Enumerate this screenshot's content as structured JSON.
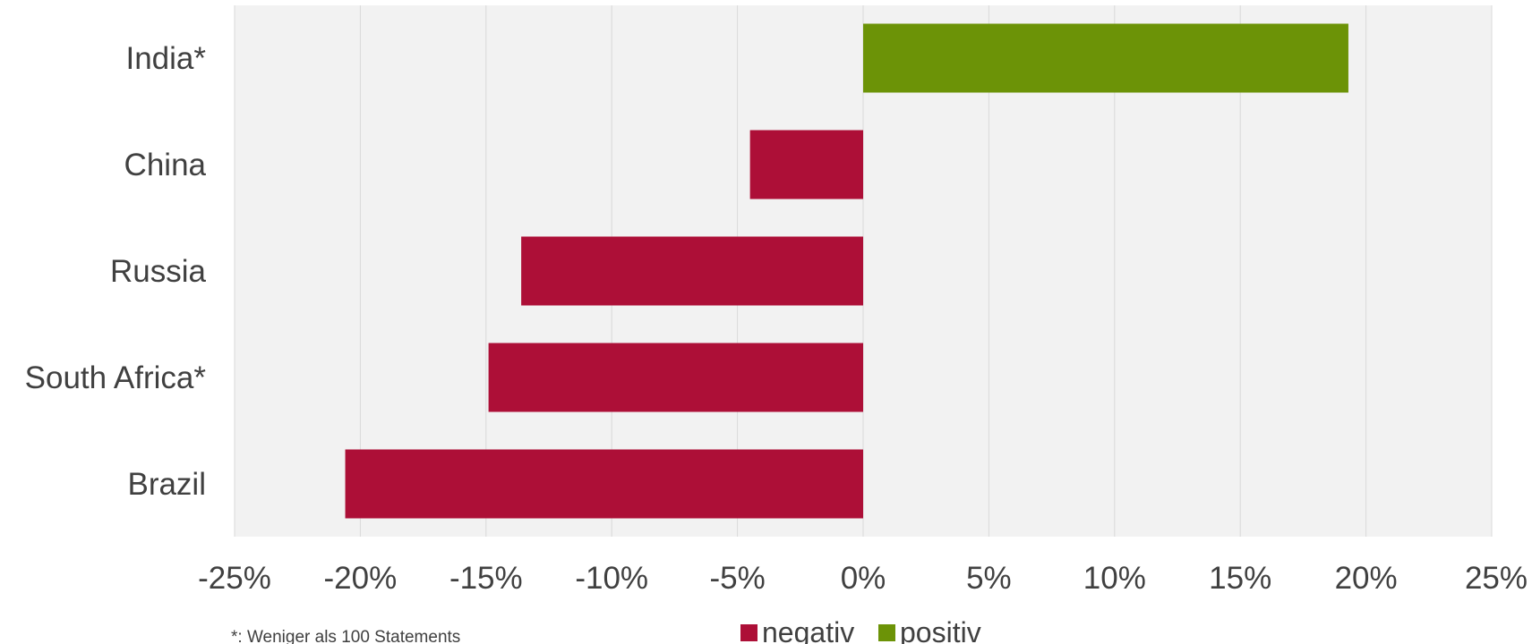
{
  "chart_data": {
    "type": "bar",
    "orientation": "horizontal",
    "categories": [
      "India*",
      "China",
      "Russia",
      "South Africa*",
      "Brazil"
    ],
    "values": [
      19.3,
      -4.5,
      -13.6,
      -14.9,
      -20.6
    ],
    "value_unit": "%",
    "xlim": [
      -25,
      25
    ],
    "x_ticks": [
      -25,
      -20,
      -15,
      -10,
      -5,
      0,
      5,
      10,
      15,
      20,
      25
    ],
    "x_tick_labels": [
      "-25%",
      "-20%",
      "-15%",
      "-10%",
      "-5%",
      "0%",
      "5%",
      "10%",
      "15%",
      "20%",
      "25%"
    ],
    "grid": true,
    "grid_axis": "x",
    "plot_background": "#f2f2f2",
    "gridline_color": "#d9d9d9",
    "legend": {
      "placement": "bottom-center",
      "entries": [
        {
          "label": "negativ",
          "color": "#ad0f37"
        },
        {
          "label": "positiv",
          "color": "#6c9307"
        }
      ]
    },
    "footnote": "*: Weniger als 100 Statements",
    "title": "",
    "xlabel": "",
    "ylabel": ""
  }
}
